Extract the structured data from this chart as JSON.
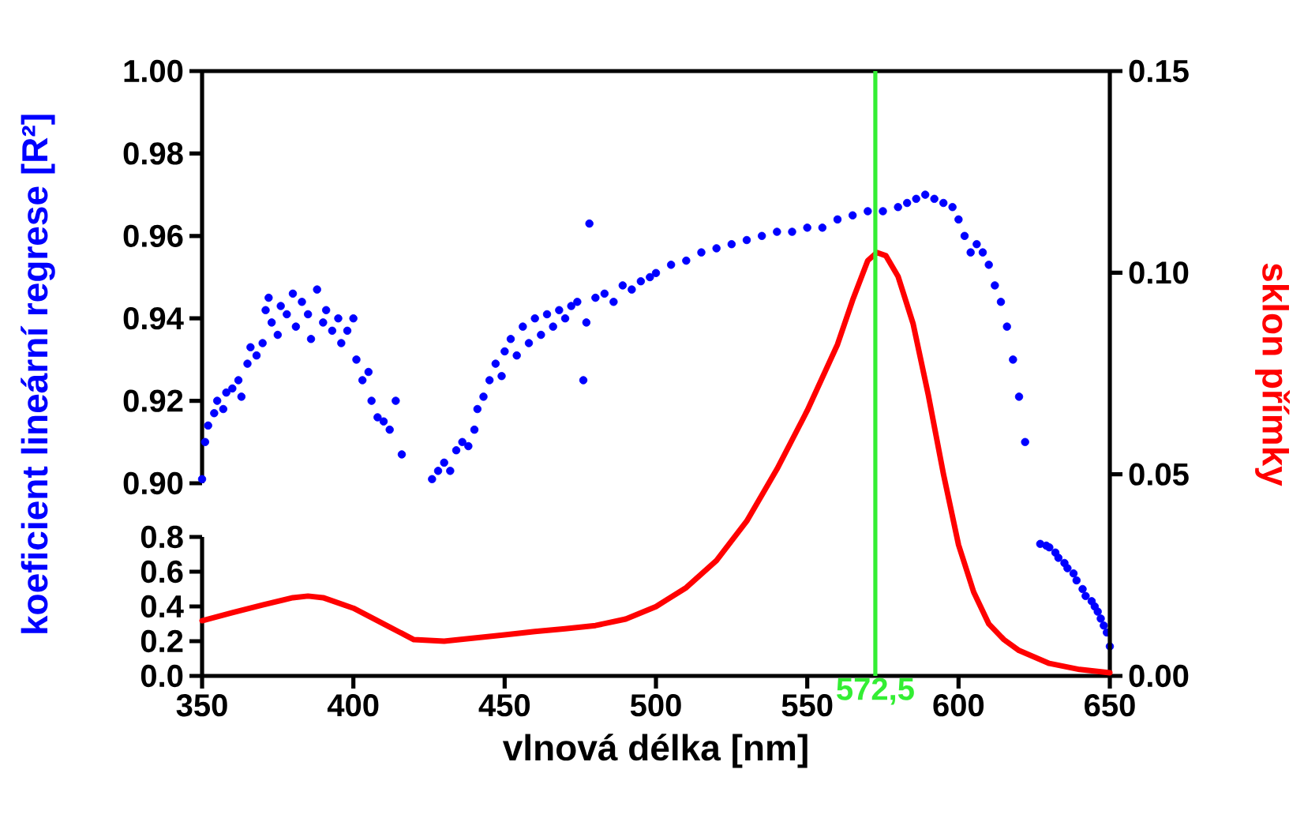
{
  "chart_data": [
    {
      "type": "scatter",
      "ylabel": "koeficient lineární regrese [R²]",
      "xlim": [
        350,
        650
      ],
      "ylim": [
        0.9,
        1.0
      ],
      "tick_labels": "y",
      "marker": "circle",
      "yticks": [
        {
          "value": 0.9,
          "label": "0.90"
        },
        {
          "value": 0.92,
          "label": "0.92"
        },
        {
          "value": 0.94,
          "label": "0.94"
        },
        {
          "value": 0.96,
          "label": "0.96"
        },
        {
          "value": 0.98,
          "label": "0.98"
        },
        {
          "value": 1.0,
          "label": "1.00"
        }
      ],
      "series": [
        {
          "color": "#0000ff",
          "x": [
            350,
            351,
            352,
            354,
            355,
            357,
            358,
            360,
            362,
            363,
            365,
            366,
            368,
            370,
            371,
            372,
            373,
            375,
            376,
            378,
            380,
            381,
            383,
            385,
            386,
            388,
            390,
            391,
            393,
            395,
            396,
            398,
            400,
            401,
            403,
            405,
            406,
            408,
            410,
            412,
            414,
            416,
            426,
            428,
            430,
            432,
            434,
            436,
            438,
            440,
            441,
            443,
            445,
            447,
            449,
            450,
            452,
            454,
            456,
            458,
            460,
            462,
            464,
            466,
            468,
            470,
            472,
            474,
            476,
            477,
            478,
            480,
            483,
            486,
            489,
            492,
            495,
            498,
            500,
            505,
            510,
            515,
            520,
            525,
            530,
            535,
            540,
            545,
            550,
            555,
            560,
            565,
            570,
            575,
            580,
            583,
            586,
            589,
            592,
            595,
            598,
            600,
            602,
            604,
            606,
            608,
            610,
            612,
            614,
            616,
            618,
            620,
            622
          ],
          "values": [
            0.901,
            0.91,
            0.914,
            0.917,
            0.92,
            0.918,
            0.922,
            0.923,
            0.925,
            0.921,
            0.929,
            0.933,
            0.931,
            0.934,
            0.942,
            0.945,
            0.939,
            0.936,
            0.943,
            0.941,
            0.946,
            0.938,
            0.944,
            0.941,
            0.935,
            0.947,
            0.939,
            0.942,
            0.937,
            0.94,
            0.934,
            0.937,
            0.94,
            0.93,
            0.925,
            0.927,
            0.92,
            0.916,
            0.915,
            0.913,
            0.92,
            0.907,
            0.901,
            0.903,
            0.905,
            0.903,
            0.908,
            0.91,
            0.909,
            0.913,
            0.918,
            0.921,
            0.925,
            0.929,
            0.926,
            0.932,
            0.935,
            0.931,
            0.938,
            0.934,
            0.94,
            0.936,
            0.941,
            0.938,
            0.942,
            0.94,
            0.943,
            0.944,
            0.925,
            0.939,
            0.963,
            0.945,
            0.946,
            0.944,
            0.948,
            0.947,
            0.949,
            0.95,
            0.951,
            0.953,
            0.954,
            0.956,
            0.957,
            0.958,
            0.959,
            0.96,
            0.961,
            0.961,
            0.962,
            0.962,
            0.964,
            0.965,
            0.966,
            0.966,
            0.967,
            0.968,
            0.969,
            0.97,
            0.969,
            0.968,
            0.967,
            0.964,
            0.96,
            0.956,
            0.958,
            0.956,
            0.953,
            0.948,
            0.944,
            0.938,
            0.93,
            0.921,
            0.91
          ]
        }
      ]
    },
    {
      "type": "scatter",
      "xlabel": "vlnová délka [nm]",
      "y2label": "sklon přímky",
      "xlim": [
        350,
        650
      ],
      "ylim": [
        0,
        0.8
      ],
      "y2lim": [
        0,
        0.15
      ],
      "marker": "circle",
      "xticks": [
        350,
        400,
        450,
        500,
        550,
        600,
        650
      ],
      "yticks": [
        {
          "value": 0,
          "label": "0.0"
        },
        {
          "value": 0.2,
          "label": "0.2"
        },
        {
          "value": 0.4,
          "label": "0.4"
        },
        {
          "value": 0.6,
          "label": "0.6"
        },
        {
          "value": 0.8,
          "label": "0.8"
        }
      ],
      "y2ticks": [
        {
          "value": 0,
          "label": "0.00"
        },
        {
          "value": 0.05,
          "label": "0.05"
        },
        {
          "value": 0.1,
          "label": "0.10"
        },
        {
          "value": 0.15,
          "label": "0.15"
        }
      ],
      "ref_lines": [
        {
          "axis": "x",
          "value": 572.5,
          "label": "572,5",
          "color": "#33ee33"
        }
      ],
      "series": [
        {
          "color": "#0000ff",
          "x": [
            627,
            629,
            630,
            632,
            633,
            635,
            636,
            638,
            639,
            641,
            642,
            644,
            645,
            646,
            647,
            648,
            649,
            650
          ],
          "values": [
            0.76,
            0.75,
            0.74,
            0.71,
            0.68,
            0.65,
            0.62,
            0.59,
            0.55,
            0.5,
            0.46,
            0.43,
            0.4,
            0.37,
            0.33,
            0.29,
            0.25,
            0.17
          ]
        },
        {
          "type": "line",
          "axis": "y2",
          "marker": "none",
          "color": "#ff0000",
          "x": [
            350,
            360,
            370,
            380,
            385,
            390,
            400,
            410,
            420,
            430,
            440,
            450,
            460,
            470,
            480,
            490,
            500,
            510,
            520,
            530,
            540,
            550,
            560,
            565,
            570,
            573,
            576,
            580,
            585,
            590,
            595,
            600,
            605,
            610,
            615,
            620,
            630,
            640,
            650
          ],
          "values": [
            0.0137,
            0.0157,
            0.0176,
            0.0194,
            0.0198,
            0.0194,
            0.0168,
            0.0129,
            0.009,
            0.0086,
            0.0094,
            0.0102,
            0.011,
            0.0117,
            0.0125,
            0.0141,
            0.0172,
            0.0219,
            0.0286,
            0.0384,
            0.0513,
            0.0658,
            0.0822,
            0.0932,
            0.103,
            0.105,
            0.1042,
            0.0991,
            0.0873,
            0.0697,
            0.0501,
            0.0325,
            0.0208,
            0.0129,
            0.009,
            0.0063,
            0.0031,
            0.0016,
            0.0008
          ]
        }
      ]
    }
  ]
}
